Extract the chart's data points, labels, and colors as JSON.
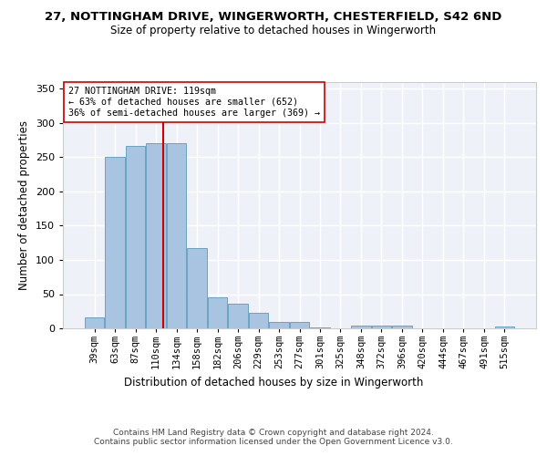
{
  "title": "27, NOTTINGHAM DRIVE, WINGERWORTH, CHESTERFIELD, S42 6ND",
  "subtitle": "Size of property relative to detached houses in Wingerworth",
  "xlabel": "Distribution of detached houses by size in Wingerworth",
  "ylabel": "Number of detached properties",
  "bar_color": "#a8c4e0",
  "bar_edge_color": "#5a9abf",
  "background_color": "#eef2f8",
  "grid_color": "#ffffff",
  "annotation_line_color": "#cc0000",
  "annotation_box_text": [
    "27 NOTTINGHAM DRIVE: 119sqm",
    "← 63% of detached houses are smaller (652)",
    "36% of semi-detached houses are larger (369) →"
  ],
  "footer_text": "Contains HM Land Registry data © Crown copyright and database right 2024.\nContains public sector information licensed under the Open Government Licence v3.0.",
  "categories": [
    "39sqm",
    "63sqm",
    "87sqm",
    "110sqm",
    "134sqm",
    "158sqm",
    "182sqm",
    "206sqm",
    "229sqm",
    "253sqm",
    "277sqm",
    "301sqm",
    "325sqm",
    "348sqm",
    "372sqm",
    "396sqm",
    "420sqm",
    "444sqm",
    "467sqm",
    "491sqm",
    "515sqm"
  ],
  "values": [
    16,
    250,
    267,
    270,
    270,
    117,
    46,
    36,
    23,
    9,
    9,
    2,
    0,
    4,
    4,
    4,
    0,
    0,
    0,
    0,
    3
  ],
  "bin_edges_sqm": [
    27,
    51,
    75,
    99,
    123,
    147,
    171,
    195,
    219,
    243,
    267,
    291,
    315,
    339,
    363,
    387,
    411,
    435,
    459,
    483,
    507,
    531
  ],
  "property_size_sqm": 119,
  "ylim": [
    0,
    360
  ],
  "yticks": [
    0,
    50,
    100,
    150,
    200,
    250,
    300,
    350
  ]
}
